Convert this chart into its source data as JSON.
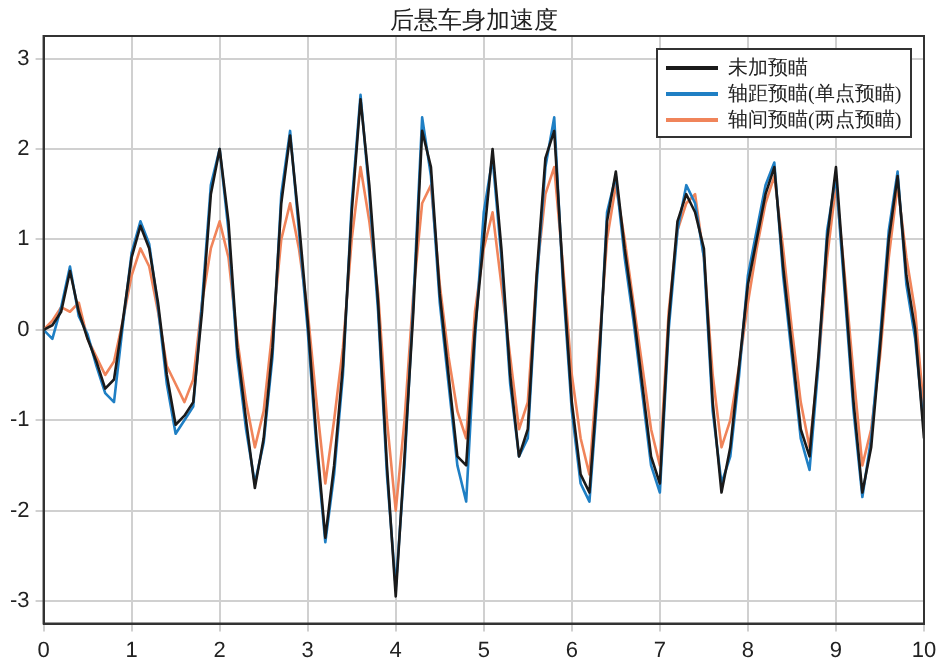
{
  "chart_data": {
    "type": "line",
    "title": "后悬车身加速度",
    "x": [
      0,
      0.1,
      0.2,
      0.3,
      0.4,
      0.5,
      0.6,
      0.7,
      0.8,
      0.9,
      1,
      1.1,
      1.2,
      1.3,
      1.4,
      1.5,
      1.6,
      1.7,
      1.8,
      1.9,
      2,
      2.1,
      2.2,
      2.3,
      2.4,
      2.5,
      2.6,
      2.7,
      2.8,
      2.9,
      3,
      3.1,
      3.2,
      3.3,
      3.4,
      3.5,
      3.6,
      3.7,
      3.8,
      3.9,
      4,
      4.1,
      4.2,
      4.3,
      4.4,
      4.5,
      4.6,
      4.7,
      4.8,
      4.9,
      5,
      5.1,
      5.2,
      5.3,
      5.4,
      5.5,
      5.6,
      5.7,
      5.8,
      5.9,
      6,
      6.1,
      6.2,
      6.3,
      6.4,
      6.5,
      6.6,
      6.7,
      6.8,
      6.9,
      7,
      7.1,
      7.2,
      7.3,
      7.4,
      7.5,
      7.6,
      7.7,
      7.8,
      7.9,
      8,
      8.1,
      8.2,
      8.3,
      8.4,
      8.5,
      8.6,
      8.7,
      8.8,
      8.9,
      9,
      9.1,
      9.2,
      9.3,
      9.4,
      9.5,
      9.6,
      9.7,
      9.8,
      9.9,
      10
    ],
    "series": [
      {
        "name": "未加预瞄",
        "color": "#1a1a1a",
        "values": [
          0,
          0.05,
          0.2,
          0.65,
          0.2,
          -0.1,
          -0.35,
          -0.65,
          -0.55,
          0.1,
          0.8,
          1.15,
          0.9,
          0.3,
          -0.5,
          -1.05,
          -0.95,
          -0.8,
          0.2,
          1.5,
          2.0,
          1.2,
          -0.2,
          -1.0,
          -1.75,
          -1.2,
          -0.2,
          1.4,
          2.15,
          1.2,
          0.1,
          -1.2,
          -2.3,
          -1.5,
          -0.4,
          1.3,
          2.55,
          1.6,
          0.3,
          -1.5,
          -2.95,
          -1.4,
          0.2,
          2.2,
          1.8,
          0.4,
          -0.5,
          -1.4,
          -1.5,
          0.0,
          1.0,
          2.0,
          0.9,
          -0.5,
          -1.4,
          -1.1,
          0.6,
          1.9,
          2.2,
          0.6,
          -0.8,
          -1.6,
          -1.8,
          -0.5,
          1.2,
          1.75,
          0.9,
          0.2,
          -0.6,
          -1.4,
          -1.7,
          0.1,
          1.2,
          1.5,
          1.3,
          0.9,
          -0.8,
          -1.8,
          -1.3,
          -0.4,
          0.5,
          1.0,
          1.5,
          1.8,
          0.7,
          -0.2,
          -1.1,
          -1.4,
          -0.3,
          1.0,
          1.8,
          0.5,
          -0.8,
          -1.8,
          -1.3,
          -0.2,
          1.0,
          1.7,
          0.6,
          0.0,
          -1.2
        ]
      },
      {
        "name": "轴距预瞄(单点预瞄)",
        "color": "#1f7fc4",
        "values": [
          0,
          -0.1,
          0.25,
          0.7,
          0.15,
          -0.05,
          -0.4,
          -0.7,
          -0.8,
          0.05,
          0.85,
          1.2,
          0.95,
          0.25,
          -0.6,
          -1.15,
          -1.0,
          -0.85,
          0.3,
          1.6,
          2.0,
          1.1,
          -0.3,
          -1.1,
          -1.7,
          -1.25,
          -0.3,
          1.5,
          2.2,
          1.1,
          0.0,
          -1.3,
          -2.35,
          -1.6,
          -0.5,
          1.4,
          2.6,
          1.5,
          0.2,
          -1.6,
          -2.85,
          -1.5,
          0.3,
          2.35,
          1.7,
          0.3,
          -0.6,
          -1.5,
          -1.9,
          -0.1,
          1.3,
          1.9,
          0.8,
          -0.6,
          -1.4,
          -1.2,
          0.5,
          1.8,
          2.35,
          0.5,
          -0.9,
          -1.7,
          -1.9,
          -0.6,
          1.3,
          1.7,
          0.8,
          0.1,
          -0.7,
          -1.5,
          -1.8,
          0.0,
          1.1,
          1.6,
          1.4,
          0.8,
          -0.9,
          -1.7,
          -1.4,
          -0.5,
          0.6,
          1.1,
          1.6,
          1.85,
          0.6,
          -0.3,
          -1.2,
          -1.55,
          -0.4,
          1.1,
          1.7,
          0.4,
          -0.9,
          -1.85,
          -1.2,
          -0.1,
          1.1,
          1.75,
          0.5,
          -0.1,
          -1.1
        ]
      },
      {
        "name": "轴间预瞄(两点预瞄)",
        "color": "#f0845a",
        "values": [
          0,
          0.1,
          0.25,
          0.2,
          0.3,
          -0.1,
          -0.3,
          -0.5,
          -0.35,
          0.1,
          0.6,
          0.9,
          0.7,
          0.2,
          -0.4,
          -0.6,
          -0.8,
          -0.55,
          0.3,
          0.9,
          1.2,
          0.8,
          -0.1,
          -0.8,
          -1.3,
          -0.9,
          0.0,
          1.0,
          1.4,
          0.9,
          0.2,
          -0.8,
          -1.7,
          -1.0,
          -0.2,
          1.0,
          1.8,
          1.2,
          0.4,
          -1.0,
          -2.0,
          -1.0,
          0.4,
          1.4,
          1.6,
          0.5,
          -0.3,
          -0.9,
          -1.2,
          0.2,
          0.9,
          1.3,
          0.5,
          -0.3,
          -1.1,
          -0.8,
          0.6,
          1.5,
          1.8,
          0.7,
          -0.5,
          -1.2,
          -1.6,
          -0.3,
          1.0,
          1.6,
          1.0,
          0.3,
          -0.4,
          -1.1,
          -1.5,
          0.2,
          1.1,
          1.4,
          1.5,
          0.8,
          -0.5,
          -1.3,
          -1.0,
          -0.4,
          0.3,
          0.9,
          1.4,
          1.7,
          0.9,
          0.0,
          -0.8,
          -1.3,
          -0.4,
          0.8,
          1.6,
          0.6,
          -0.5,
          -1.5,
          -1.1,
          -0.3,
          0.8,
          1.6,
          0.8,
          0.2,
          -0.9
        ]
      }
    ],
    "xlim": [
      0,
      10
    ],
    "xticks": [
      0,
      1,
      2,
      3,
      4,
      5,
      6,
      7,
      8,
      9,
      10
    ],
    "ylim": [
      -3.25,
      3.25
    ],
    "yticks": [
      -3,
      -2,
      -1,
      0,
      1,
      2,
      3
    ],
    "grid": true,
    "legend": "top right",
    "marker": "none",
    "line_style": "solid"
  }
}
